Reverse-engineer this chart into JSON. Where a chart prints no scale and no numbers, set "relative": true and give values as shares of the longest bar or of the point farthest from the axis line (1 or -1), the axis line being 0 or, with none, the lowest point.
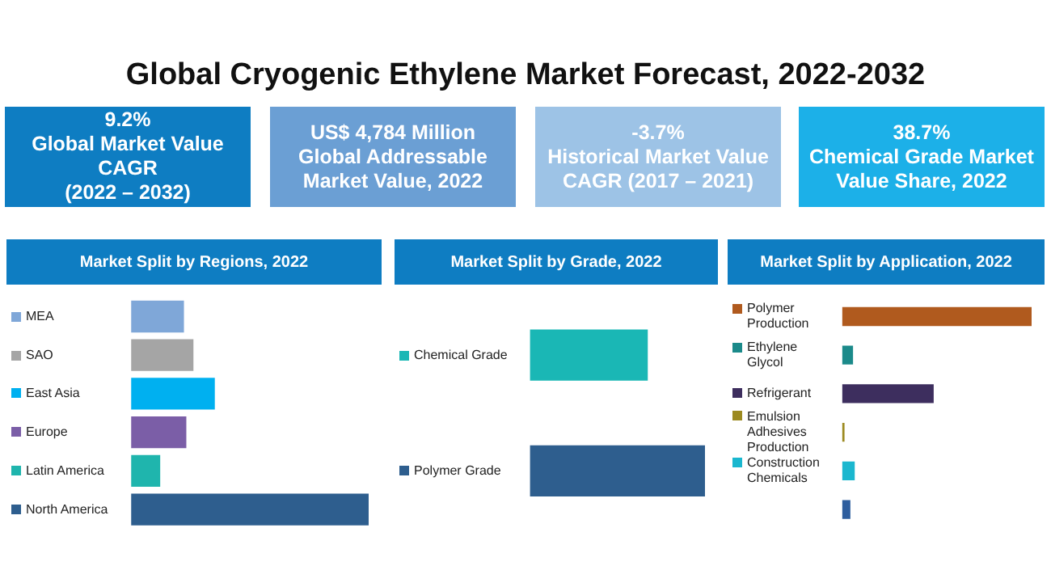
{
  "chart_data": [
    {
      "type": "other",
      "title": "Global Cryogenic Ethylene Market Forecast, 2022-2032",
      "annotations": [
        "9.2%\nGlobal Market Value CAGR\n(2022 – 2032)",
        "US$ 4,784 Million\nGlobal Addressable Market Value, 2022",
        "-3.7%\nHistorical Market Value CAGR (2017 – 2021)",
        "38.7%\nChemical Grade Market Value Share, 2022"
      ],
      "colors": [
        "#0e7dc2",
        "#6b9fd4",
        "#9dc3e6",
        "#1cb0e8"
      ]
    },
    {
      "type": "bar",
      "orientation": "horizontal",
      "relative": true,
      "title": "Market Split by Regions, 2022",
      "categories": [
        "MEA",
        "SAO",
        "East Asia",
        "Europe",
        "Latin America",
        "North America"
      ],
      "values": [
        0.22,
        0.26,
        0.35,
        0.23,
        0.12,
        1
      ],
      "colors": [
        "#7fa7d8",
        "#a5a5a5",
        "#00b0f0",
        "#7b5ea7",
        "#1fb5ad",
        "#2e5e8e"
      ],
      "legend": false
    },
    {
      "type": "bar",
      "orientation": "horizontal",
      "relative": true,
      "title": "Market Split by Grade, 2022",
      "categories": [
        "Chemical Grade",
        "Polymer Grade"
      ],
      "values": [
        0.67,
        1
      ],
      "colors": [
        "#1ab7b5",
        "#2e5e8e"
      ],
      "legend": false
    },
    {
      "type": "bar",
      "orientation": "horizontal",
      "relative": true,
      "title": "Market Split by Application, 2022",
      "categories": [
        "Polymer Production",
        "Ethylene Glycol",
        "Refrigerant",
        "Emulsion Adhesives Production",
        "Construction Chemicals",
        null
      ],
      "values": [
        1,
        0.054,
        0.48,
        0.009,
        0.063,
        0.04
      ],
      "colors": [
        "#b05a1e",
        "#1b8a8a",
        "#3d2e5e",
        "#9c8a20",
        "#1ab7cf",
        "#2e5e9e"
      ],
      "legend": false
    }
  ]
}
